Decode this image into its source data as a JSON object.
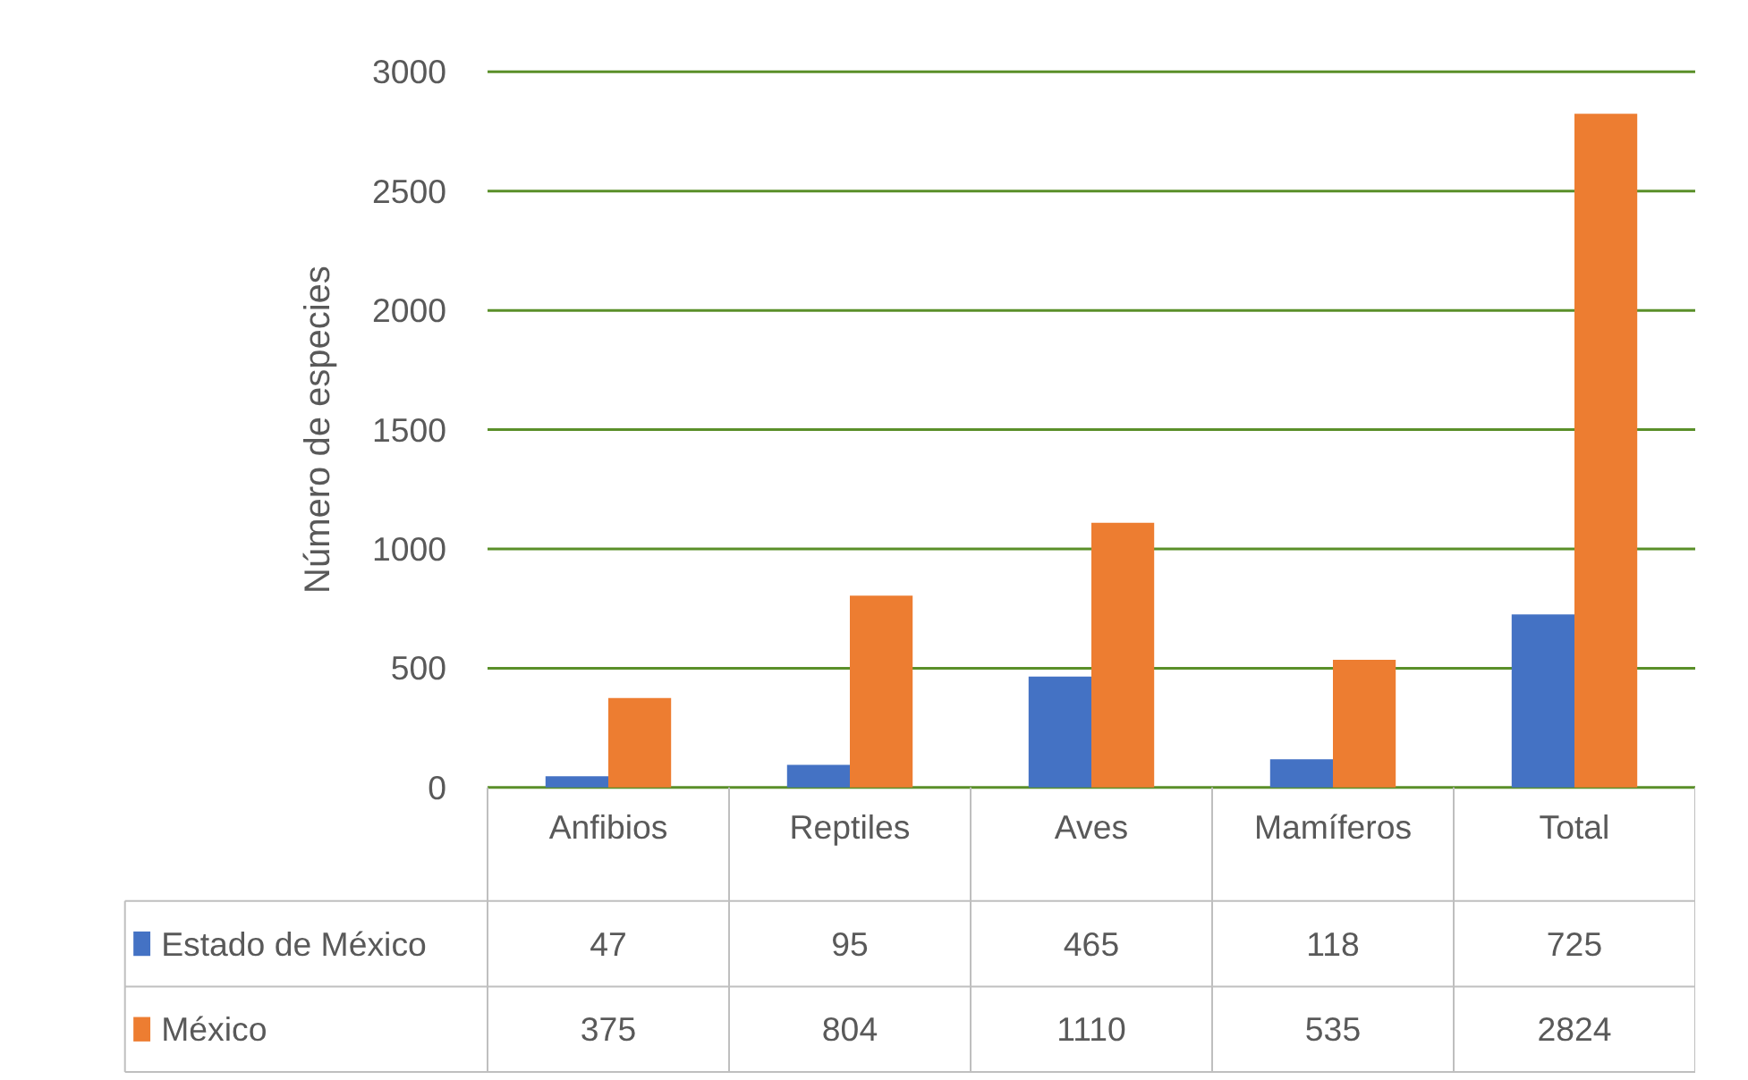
{
  "chart_data": {
    "type": "bar",
    "ylabel": "Número de especies",
    "categories": [
      "Anfibios",
      "Reptiles",
      "Aves",
      "Mamíferos",
      "Total"
    ],
    "series": [
      {
        "name": "Estado de México",
        "color": "#4472c4",
        "values": [
          47,
          95,
          465,
          118,
          725
        ]
      },
      {
        "name": "México",
        "color": "#ed7d31",
        "values": [
          375,
          804,
          1110,
          535,
          2824
        ]
      }
    ],
    "ylim": [
      0,
      3000
    ],
    "yticks": [
      0,
      500,
      1000,
      1500,
      2000,
      2500,
      3000
    ],
    "grid": "y",
    "legend": "bottom",
    "data_labels": true
  }
}
